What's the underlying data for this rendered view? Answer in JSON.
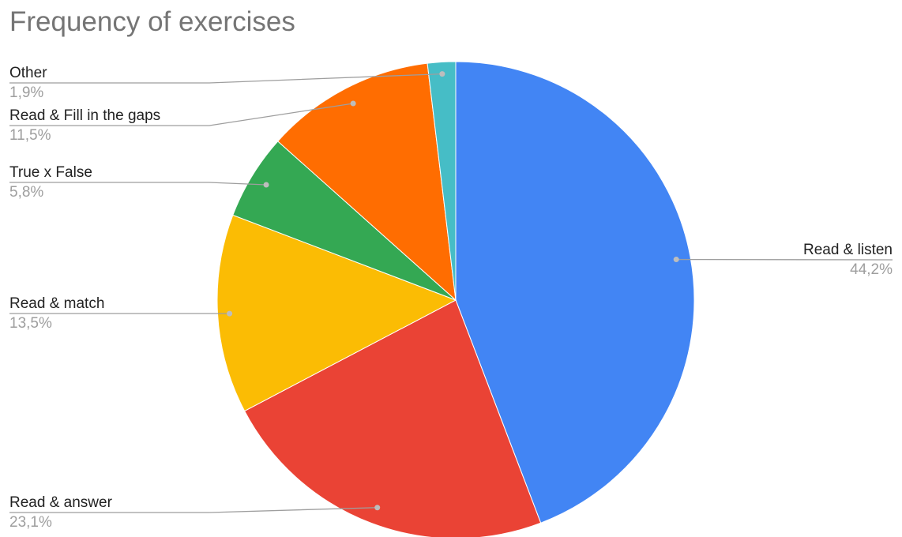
{
  "chart_data": {
    "type": "pie",
    "title": "Frequency of exercises",
    "slices": [
      {
        "label": "Read & listen",
        "value": 44.2,
        "value_label": "44,2%",
        "color": "#4285f4"
      },
      {
        "label": "Read & answer",
        "value": 23.1,
        "value_label": "23,1%",
        "color": "#ea4335"
      },
      {
        "label": "Read & match",
        "value": 13.5,
        "value_label": "13,5%",
        "color": "#fbbc04"
      },
      {
        "label": "True x False",
        "value": 5.8,
        "value_label": "5,8%",
        "color": "#34a853"
      },
      {
        "label": "Read & Fill in the gaps",
        "value": 11.5,
        "value_label": "11,5%",
        "color": "#ff6d01"
      },
      {
        "label": "Other",
        "value": 1.9,
        "value_label": "1,9%",
        "color": "#46bdc6"
      }
    ],
    "start_angle": "top",
    "direction": "clockwise",
    "legend": "none",
    "labels": "outside-with-leader-lines"
  }
}
